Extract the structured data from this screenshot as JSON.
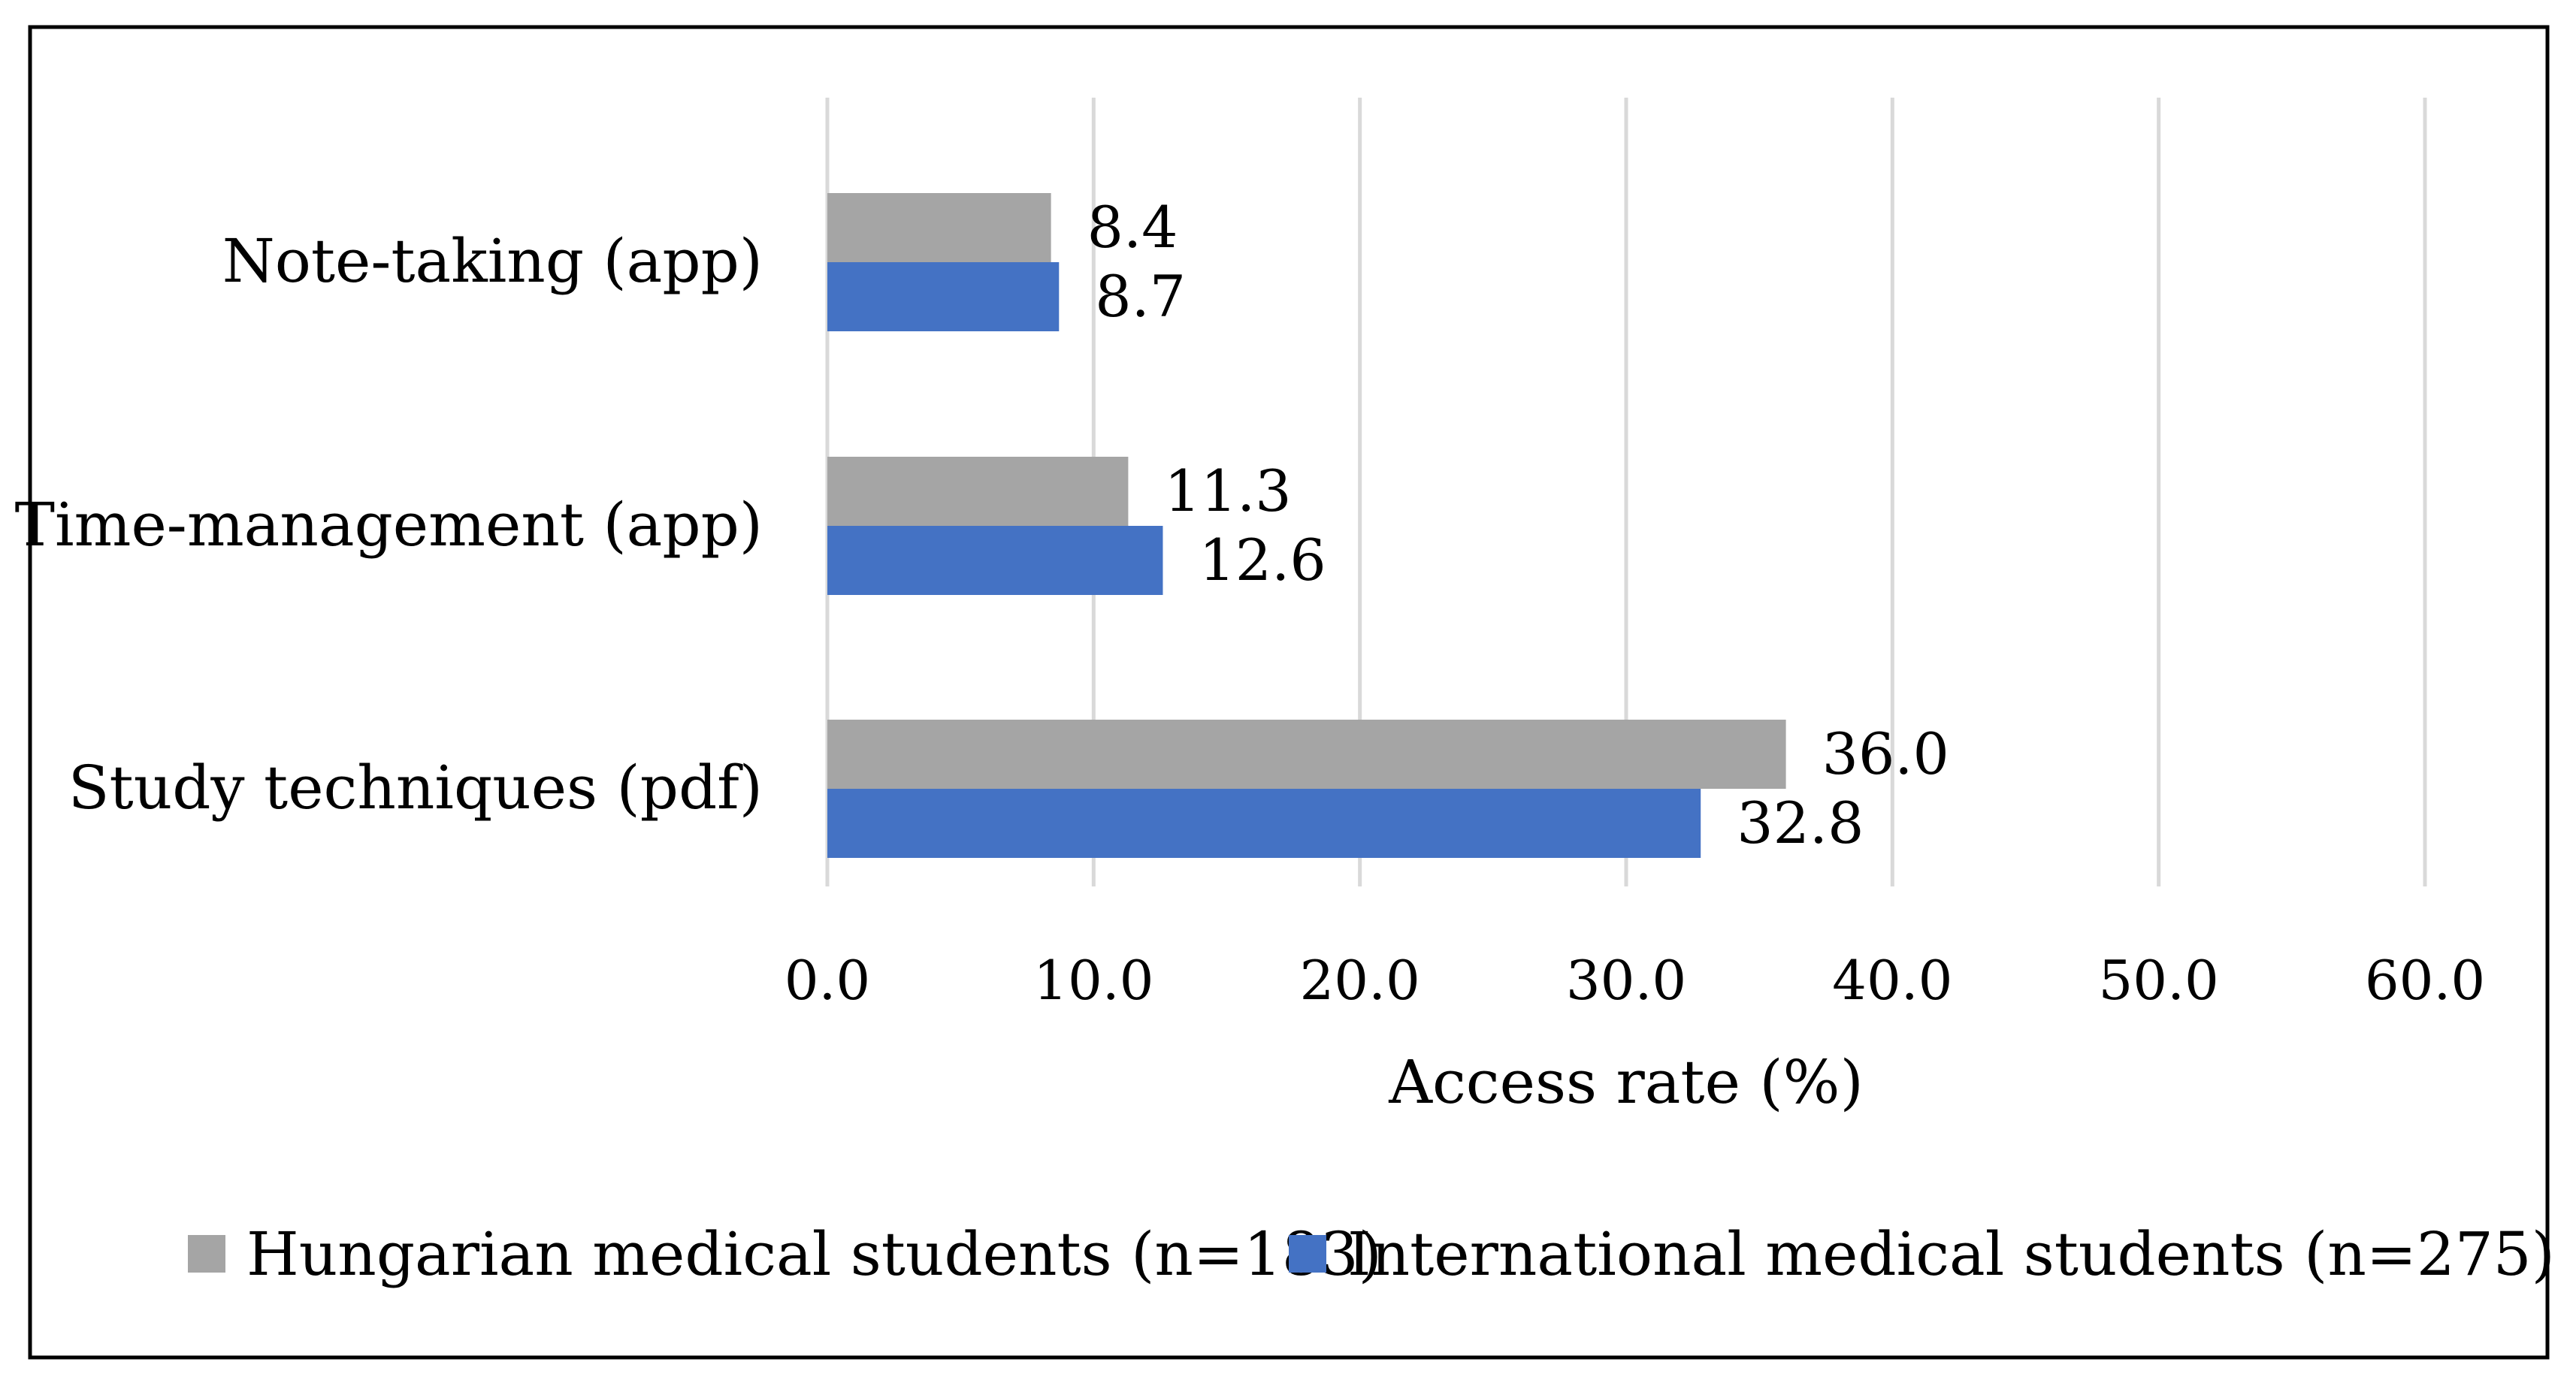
{
  "chart_data": {
    "type": "bar",
    "orientation": "horizontal",
    "title": "",
    "xlabel": "Access rate (%)",
    "ylabel": "",
    "xlim": [
      0,
      60
    ],
    "x_ticks": [
      0,
      10,
      20,
      30,
      40,
      50,
      60
    ],
    "x_tick_labels": [
      "0.0",
      "10.0",
      "20.0",
      "30.0",
      "40.0",
      "50.0",
      "60.0"
    ],
    "grid": true,
    "categories": [
      "Note-taking (app)",
      "Time-management (app)",
      "Study techniques (pdf)"
    ],
    "series": [
      {
        "name": "Hungarian medical students (n=183)",
        "color": "#a5a5a5",
        "values": [
          8.4,
          11.3,
          36.0
        ],
        "value_labels": [
          "8.4",
          "11.3",
          "36.0"
        ]
      },
      {
        "name": "International medical students (n=275)",
        "color": "#4472c4",
        "values": [
          8.7,
          12.6,
          32.8
        ],
        "value_labels": [
          "8.7",
          "12.6",
          "32.8"
        ]
      }
    ],
    "legend_position": "bottom"
  }
}
